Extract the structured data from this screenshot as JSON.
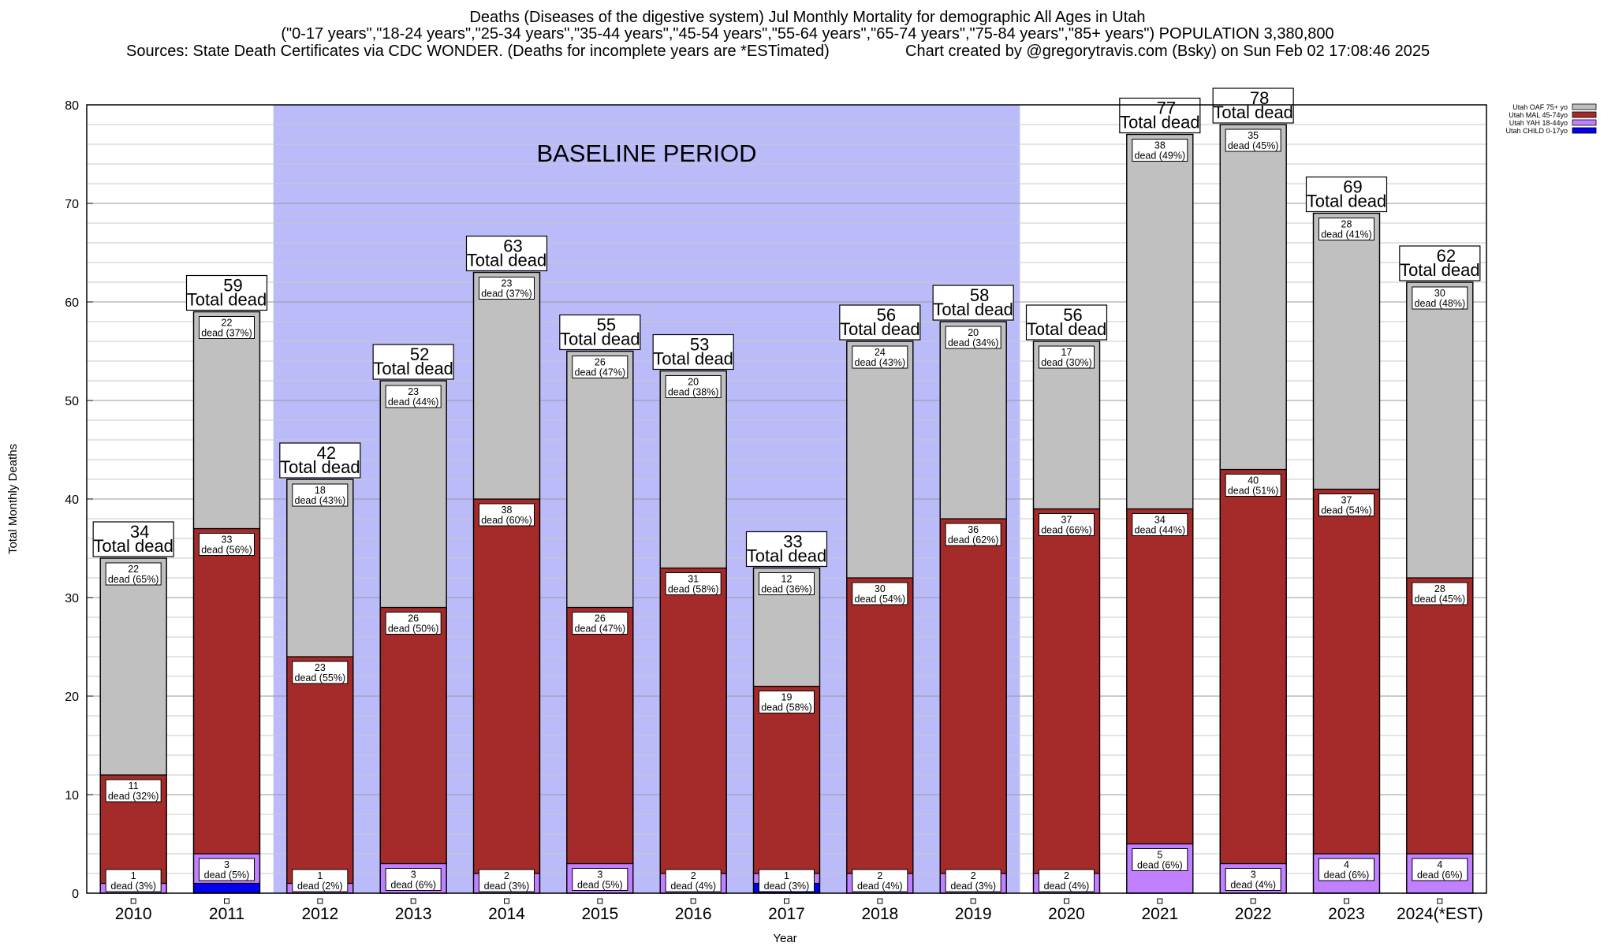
{
  "title": {
    "line1": "Deaths (Diseases of the digestive system) Jul Monthly Mortality for demographic All Ages in Utah",
    "line2": "(\"0-17 years\",\"18-24 years\",\"25-34 years\",\"35-44 years\",\"45-54 years\",\"55-64 years\",\"65-74 years\",\"75-84 years\",\"85+ years\") POPULATION 3,380,800",
    "sources": "Sources: State Death Certificates via CDC WONDER. (Deaths for incomplete years are *ESTimated)",
    "credit": "Chart created by @gregorytravis.com (Bsky) on Sun Feb 02 17:08:46 2025"
  },
  "chart_data": {
    "type": "bar",
    "stacked": true,
    "xlabel": "Year",
    "ylabel": "Total Monthly Deaths",
    "ylim": [
      0,
      80
    ],
    "yticks": [
      0,
      10,
      20,
      30,
      40,
      50,
      60,
      70,
      80
    ],
    "grid": true,
    "legend_position": "top-right",
    "baseline_label": "BASELINE PERIOD",
    "baseline_range": [
      "2012",
      "2019"
    ],
    "baseline_color": "#bbbbfa",
    "total_suffix": "Total dead",
    "categories": [
      "2010",
      "2011",
      "2012",
      "2013",
      "2014",
      "2015",
      "2016",
      "2017",
      "2018",
      "2019",
      "2020",
      "2021",
      "2022",
      "2023",
      "2024(*EST)"
    ],
    "totals": [
      34,
      59,
      42,
      52,
      63,
      55,
      53,
      33,
      56,
      58,
      56,
      77,
      78,
      69,
      62
    ],
    "series": [
      {
        "name": "Utah CHILD 0-17yo",
        "color": "#0000ee",
        "values": [
          0,
          1,
          0,
          0,
          0,
          0,
          0,
          1,
          0,
          0,
          0,
          0,
          0,
          0,
          0
        ],
        "labels": [
          null,
          null,
          null,
          null,
          null,
          null,
          null,
          null,
          null,
          null,
          null,
          null,
          null,
          null,
          null
        ]
      },
      {
        "name": "Utah YAH 18-44yo",
        "color": "#c080ff",
        "values": [
          1,
          3,
          1,
          3,
          2,
          3,
          2,
          1,
          2,
          2,
          2,
          5,
          3,
          4,
          4
        ],
        "labels": [
          [
            "1",
            "dead (3%)"
          ],
          [
            "3",
            "dead (5%)"
          ],
          [
            "1",
            "dead (2%)"
          ],
          [
            "3",
            "dead (6%)"
          ],
          [
            "2",
            "dead (3%)"
          ],
          [
            "3",
            "dead (5%)"
          ],
          [
            "2",
            "dead (4%)"
          ],
          [
            "1",
            "dead (3%)"
          ],
          [
            "2",
            "dead (4%)"
          ],
          [
            "2",
            "dead (3%)"
          ],
          [
            "2",
            "dead (4%)"
          ],
          [
            "5",
            "dead (6%)"
          ],
          [
            "3",
            "dead (4%)"
          ],
          [
            "4",
            "dead (6%)"
          ],
          [
            "4",
            "dead (6%)"
          ]
        ]
      },
      {
        "name": "Utah MAL 45-74yo",
        "color": "#a52a2a",
        "values": [
          11,
          33,
          23,
          26,
          38,
          26,
          31,
          19,
          30,
          36,
          37,
          34,
          40,
          37,
          28
        ],
        "labels": [
          [
            "11",
            "dead (32%)"
          ],
          [
            "33",
            "dead (56%)"
          ],
          [
            "23",
            "dead (55%)"
          ],
          [
            "26",
            "dead (50%)"
          ],
          [
            "38",
            "dead (60%)"
          ],
          [
            "26",
            "dead (47%)"
          ],
          [
            "31",
            "dead (58%)"
          ],
          [
            "19",
            "dead (58%)"
          ],
          [
            "30",
            "dead (54%)"
          ],
          [
            "36",
            "dead (62%)"
          ],
          [
            "37",
            "dead (66%)"
          ],
          [
            "34",
            "dead (44%)"
          ],
          [
            "40",
            "dead (51%)"
          ],
          [
            "37",
            "dead (54%)"
          ],
          [
            "28",
            "dead (45%)"
          ]
        ]
      },
      {
        "name": "Utah OAF 75+ yo",
        "color": "#c0c0c0",
        "values": [
          22,
          22,
          18,
          23,
          23,
          26,
          20,
          12,
          24,
          20,
          17,
          38,
          35,
          28,
          30
        ],
        "labels": [
          [
            "22",
            "dead (65%)"
          ],
          [
            "22",
            "dead (37%)"
          ],
          [
            "18",
            "dead (43%)"
          ],
          [
            "23",
            "dead (44%)"
          ],
          [
            "23",
            "dead (37%)"
          ],
          [
            "26",
            "dead (47%)"
          ],
          [
            "20",
            "dead (38%)"
          ],
          [
            "12",
            "dead (36%)"
          ],
          [
            "24",
            "dead (43%)"
          ],
          [
            "20",
            "dead (34%)"
          ],
          [
            "17",
            "dead (30%)"
          ],
          [
            "38",
            "dead (49%)"
          ],
          [
            "35",
            "dead (45%)"
          ],
          [
            "28",
            "dead (41%)"
          ],
          [
            "30",
            "dead (48%)"
          ]
        ]
      }
    ],
    "legend_order": [
      "Utah OAF 75+ yo",
      "Utah MAL 45-74yo",
      "Utah YAH 18-44yo",
      "Utah CHILD 0-17yo"
    ]
  }
}
